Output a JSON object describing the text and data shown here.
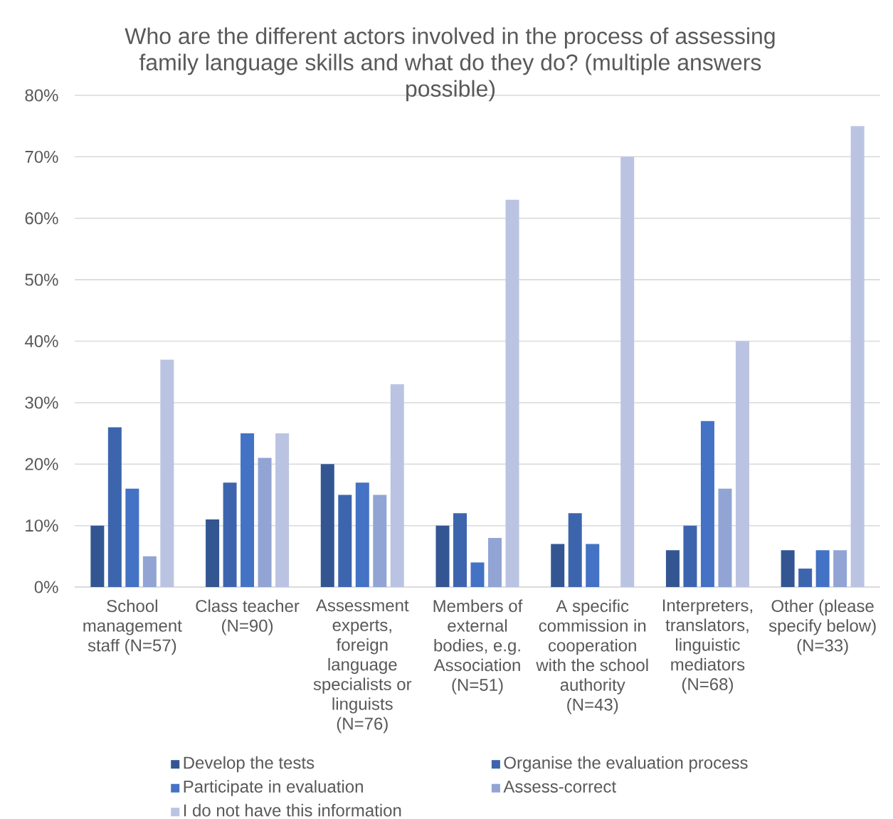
{
  "chart_data": {
    "type": "bar",
    "title": "Who are the different actors involved in the process of assessing family language skills and what do they do? (multiple answers possible)",
    "categories": [
      "School management staff (N=57)",
      "Class teacher (N=90)",
      "Assessment experts, foreign language specialists or linguists (N=76)",
      "Members of external bodies, e.g. Association (N=51)",
      "A specific commission in cooperation with the school authority (N=43)",
      "Interpreters, translators, linguistic mediators (N=68)",
      "Other (please specify below) (N=33)"
    ],
    "series": [
      {
        "name": "Develop the tests",
        "color": "#335693",
        "values": [
          10,
          11,
          20,
          10,
          7,
          6,
          6
        ]
      },
      {
        "name": "Organise the evaluation process",
        "color": "#3d65ae",
        "values": [
          26,
          17,
          15,
          12,
          12,
          10,
          3
        ]
      },
      {
        "name": "Participate in evaluation",
        "color": "#4472c4",
        "values": [
          16,
          25,
          17,
          4,
          7,
          27,
          6
        ]
      },
      {
        "name": "Assess-correct",
        "color": "#91a4d4",
        "values": [
          5,
          21,
          15,
          8,
          null,
          16,
          6
        ]
      },
      {
        "name": "I do not have this information",
        "color": "#bac4e2",
        "values": [
          37,
          25,
          33,
          63,
          70,
          40,
          75
        ]
      }
    ],
    "ylim": [
      0,
      80
    ],
    "yticks": [
      {
        "value": 0,
        "label": "0%"
      },
      {
        "value": 10,
        "label": "10%"
      },
      {
        "value": 20,
        "label": "20%"
      },
      {
        "value": 30,
        "label": "30%"
      },
      {
        "value": 40,
        "label": "40%"
      },
      {
        "value": 50,
        "label": "50%"
      },
      {
        "value": 60,
        "label": "60%"
      },
      {
        "value": 70,
        "label": "70%"
      },
      {
        "value": 80,
        "label": "80%"
      }
    ],
    "grid": "y",
    "legend": "bottom"
  }
}
